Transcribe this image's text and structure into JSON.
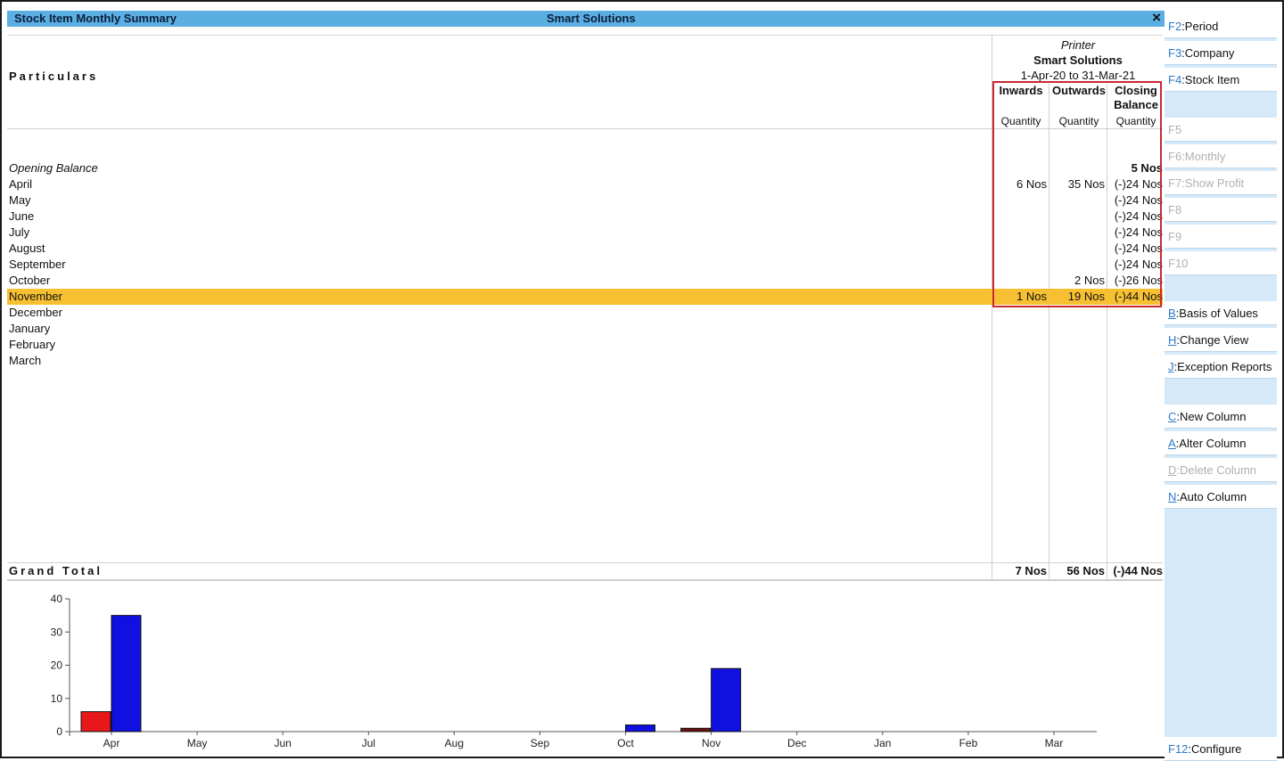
{
  "window": {
    "title": "Stock Item Monthly Summary",
    "company_title": "Smart Solutions",
    "close_label": "×"
  },
  "report": {
    "particulars_label": "Particulars",
    "item_name": "Printer",
    "company_name": "Smart Solutions",
    "period": "1-Apr-20 to 31-Mar-21",
    "columns": {
      "inwards": "Inwards",
      "outwards": "Outwards",
      "closing_line1": "Closing",
      "closing_line2": "Balance",
      "quantity": "Quantity"
    },
    "opening": {
      "label": "Opening Balance",
      "closing": "5 Nos"
    },
    "rows": [
      {
        "label": "April",
        "inwards": "6 Nos",
        "outwards": "35 Nos",
        "closing": "(-)24 Nos"
      },
      {
        "label": "May",
        "inwards": "",
        "outwards": "",
        "closing": "(-)24 Nos"
      },
      {
        "label": "June",
        "inwards": "",
        "outwards": "",
        "closing": "(-)24 Nos"
      },
      {
        "label": "July",
        "inwards": "",
        "outwards": "",
        "closing": "(-)24 Nos"
      },
      {
        "label": "August",
        "inwards": "",
        "outwards": "",
        "closing": "(-)24 Nos"
      },
      {
        "label": "September",
        "inwards": "",
        "outwards": "",
        "closing": "(-)24 Nos"
      },
      {
        "label": "October",
        "inwards": "",
        "outwards": "2 Nos",
        "closing": "(-)26 Nos"
      },
      {
        "label": "November",
        "inwards": "1 Nos",
        "outwards": "19 Nos",
        "closing": "(-)44 Nos"
      },
      {
        "label": "December",
        "inwards": "",
        "outwards": "",
        "closing": ""
      },
      {
        "label": "January",
        "inwards": "",
        "outwards": "",
        "closing": ""
      },
      {
        "label": "February",
        "inwards": "",
        "outwards": "",
        "closing": ""
      },
      {
        "label": "March",
        "inwards": "",
        "outwards": "",
        "closing": ""
      }
    ],
    "selected_row": "November",
    "grand_total": {
      "label": "Grand Total",
      "inwards": "7 Nos",
      "outwards": "56 Nos",
      "closing": "(-)44 Nos"
    }
  },
  "sidebar": {
    "buttons": [
      {
        "key": "F2",
        "label": "Period",
        "enabled": true
      },
      {
        "key": "F3",
        "label": "Company",
        "enabled": true
      },
      {
        "key": "F4",
        "label": "Stock Item",
        "enabled": true
      },
      {
        "key": "F5",
        "label": "",
        "enabled": false
      },
      {
        "key": "F6",
        "label": "Monthly",
        "enabled": false
      },
      {
        "key": "F7",
        "label": "Show Profit",
        "enabled": false
      },
      {
        "key": "F8",
        "label": "",
        "enabled": false
      },
      {
        "key": "F9",
        "label": "",
        "enabled": false
      },
      {
        "key": "F10",
        "label": "",
        "enabled": false
      },
      {
        "key": "B",
        "label": "Basis of Values",
        "enabled": true
      },
      {
        "key": "H",
        "label": "Change View",
        "enabled": true
      },
      {
        "key": "J",
        "label": "Exception Reports",
        "enabled": true
      },
      {
        "key": "C",
        "label": "New Column",
        "enabled": true
      },
      {
        "key": "A",
        "label": "Alter Column",
        "enabled": true
      },
      {
        "key": "D",
        "label": "Delete Column",
        "enabled": false
      },
      {
        "key": "N",
        "label": "Auto Column",
        "enabled": true
      },
      {
        "key": "F12",
        "label": "Configure",
        "enabled": true
      }
    ]
  },
  "colors": {
    "title_bar": "#5aaee2",
    "selected_row": "#f7c032",
    "highlight_box": "#c82a33",
    "inwards_bar": "#e8181a",
    "outwards_bar": "#1010e0",
    "inwards_bar_small": "#6b1010"
  },
  "chart_data": {
    "type": "bar",
    "categories": [
      "Apr",
      "May",
      "Jun",
      "Jul",
      "Aug",
      "Sep",
      "Oct",
      "Nov",
      "Dec",
      "Jan",
      "Feb",
      "Mar"
    ],
    "series": [
      {
        "values": [
          6,
          0,
          0,
          0,
          0,
          0,
          0,
          1,
          0,
          0,
          0,
          0
        ]
      },
      {
        "values": [
          35,
          0,
          0,
          0,
          0,
          0,
          2,
          19,
          0,
          0,
          0,
          0
        ]
      }
    ],
    "yticks": [
      "0",
      "10",
      "20",
      "30",
      "40"
    ],
    "ylim": [
      0,
      40
    ]
  }
}
